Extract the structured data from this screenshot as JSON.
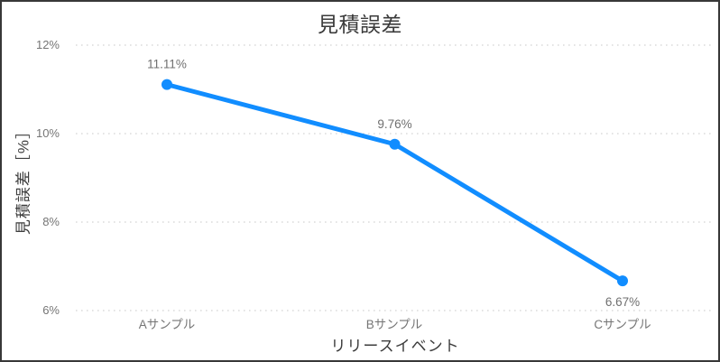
{
  "window": {
    "background": "#ffffff",
    "border_color": "#383838"
  },
  "chart_data": {
    "type": "line",
    "title": "見積誤差",
    "xlabel": "リリースイベント",
    "ylabel": "見積誤差［%］",
    "categories": [
      "Aサンプル",
      "Bサンプル",
      "Cサンプル"
    ],
    "values": [
      11.11,
      9.76,
      6.67
    ],
    "point_labels": [
      "11.11%",
      "9.76%",
      "6.67%"
    ],
    "point_label_positions": [
      "above",
      "above",
      "below"
    ],
    "ylim": [
      6,
      12
    ],
    "ytick_values": [
      12,
      10,
      8,
      6
    ],
    "ytick_labels": [
      "12%",
      "10%",
      "8%",
      "6%"
    ],
    "grid": "horizontal-dotted",
    "legend_position": "none",
    "line_color": "#118DFF",
    "marker": "circle",
    "gridline_color": "#dcdcdc",
    "text_colors": {
      "title": "#3b3b3b",
      "axis_title": "#3d3d3d",
      "tick_label": "#757575",
      "data_label": "#6f6f6f"
    }
  }
}
